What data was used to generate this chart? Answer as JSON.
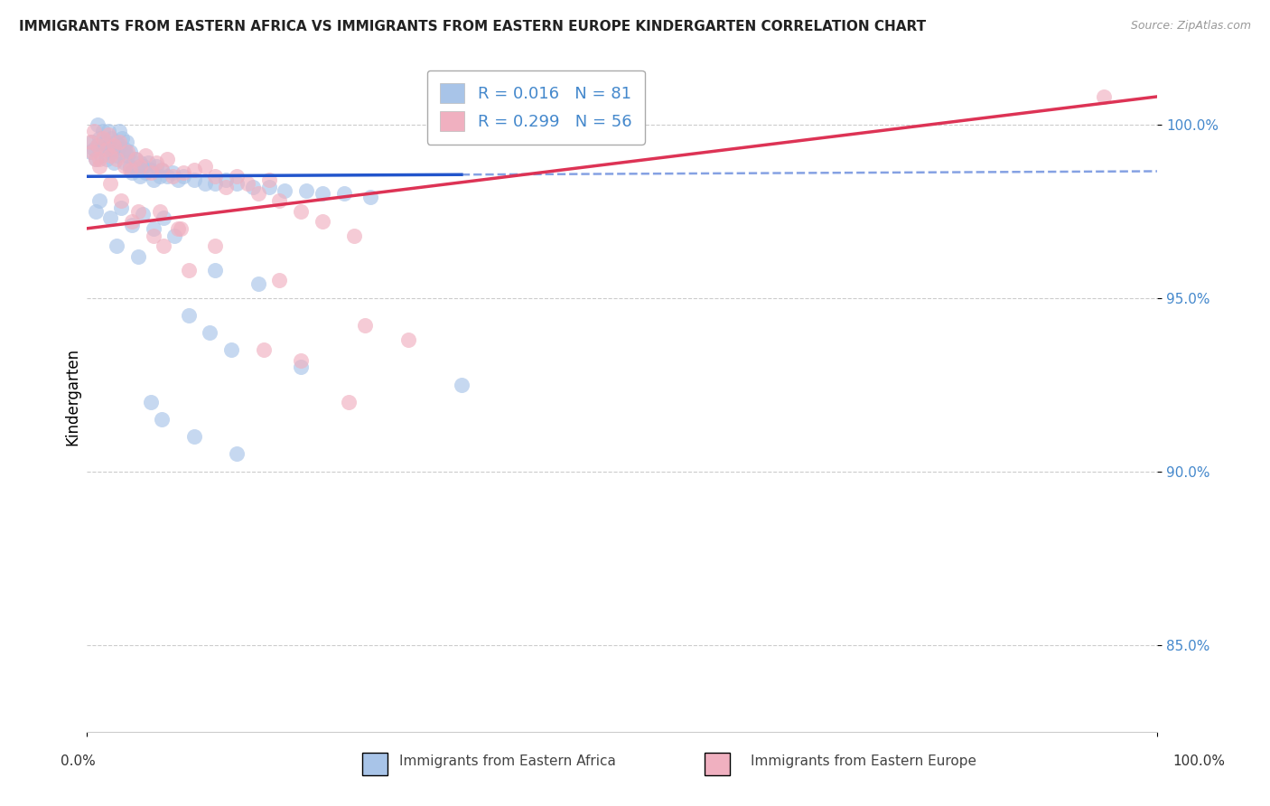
{
  "title": "IMMIGRANTS FROM EASTERN AFRICA VS IMMIGRANTS FROM EASTERN EUROPE KINDERGARTEN CORRELATION CHART",
  "source": "Source: ZipAtlas.com",
  "ylabel": "Kindergarten",
  "y_tick_values": [
    85.0,
    90.0,
    95.0,
    100.0
  ],
  "xlim": [
    0.0,
    100.0
  ],
  "ylim": [
    82.5,
    101.8
  ],
  "blue_R": 0.016,
  "blue_N": 81,
  "pink_R": 0.299,
  "pink_N": 56,
  "blue_color": "#a8c4e8",
  "pink_color": "#f0b0c0",
  "blue_line_color": "#2255cc",
  "pink_line_color": "#dd3355",
  "background_color": "#ffffff",
  "grid_color": "#cccccc",
  "blue_line_start_y": 98.5,
  "blue_line_end_y": 98.65,
  "blue_line_solid_end_x": 35.0,
  "pink_line_start_y": 97.0,
  "pink_line_end_y": 100.8,
  "blue_x": [
    0.3,
    0.5,
    0.7,
    0.8,
    1.0,
    1.0,
    1.2,
    1.3,
    1.5,
    1.5,
    1.7,
    1.8,
    2.0,
    2.0,
    2.2,
    2.3,
    2.5,
    2.5,
    2.7,
    2.8,
    3.0,
    3.0,
    3.2,
    3.3,
    3.5,
    3.5,
    3.7,
    3.8,
    4.0,
    4.0,
    4.2,
    4.5,
    4.7,
    5.0,
    5.0,
    5.3,
    5.5,
    5.7,
    6.0,
    6.2,
    6.5,
    6.8,
    7.0,
    7.5,
    8.0,
    8.5,
    9.0,
    10.0,
    11.0,
    12.0,
    13.0,
    14.0,
    15.5,
    17.0,
    18.5,
    20.5,
    22.0,
    24.0,
    26.5,
    0.8,
    1.2,
    2.2,
    3.2,
    4.2,
    5.2,
    6.2,
    7.2,
    8.2,
    2.8,
    4.8,
    12.0,
    16.0,
    9.5,
    11.5,
    13.5,
    20.0,
    35.0,
    6.0,
    7.0,
    10.0,
    14.0
  ],
  "blue_y": [
    99.2,
    99.5,
    99.3,
    99.0,
    99.4,
    100.0,
    99.6,
    99.1,
    99.3,
    99.8,
    99.5,
    99.0,
    99.4,
    99.8,
    99.2,
    99.6,
    99.3,
    98.9,
    99.5,
    99.1,
    99.4,
    99.8,
    99.2,
    99.6,
    99.3,
    98.9,
    99.5,
    99.1,
    99.2,
    98.8,
    98.6,
    99.0,
    98.7,
    98.9,
    98.5,
    98.8,
    98.6,
    98.9,
    98.7,
    98.4,
    98.8,
    98.5,
    98.7,
    98.5,
    98.6,
    98.4,
    98.5,
    98.4,
    98.3,
    98.3,
    98.4,
    98.3,
    98.2,
    98.2,
    98.1,
    98.1,
    98.0,
    98.0,
    97.9,
    97.5,
    97.8,
    97.3,
    97.6,
    97.1,
    97.4,
    97.0,
    97.3,
    96.8,
    96.5,
    96.2,
    95.8,
    95.4,
    94.5,
    94.0,
    93.5,
    93.0,
    92.5,
    92.0,
    91.5,
    91.0,
    90.5
  ],
  "pink_x": [
    0.3,
    0.5,
    0.7,
    1.0,
    1.2,
    1.5,
    1.8,
    2.0,
    2.2,
    2.5,
    2.8,
    3.0,
    3.5,
    3.8,
    4.0,
    4.5,
    5.0,
    5.5,
    6.0,
    6.5,
    7.0,
    7.5,
    8.0,
    9.0,
    10.0,
    11.0,
    12.0,
    13.0,
    14.0,
    15.0,
    16.0,
    17.0,
    18.0,
    20.0,
    22.0,
    25.0,
    1.2,
    2.2,
    3.2,
    4.2,
    6.2,
    7.2,
    9.5,
    16.5,
    24.5,
    6.8,
    8.8,
    12.0,
    18.0,
    26.0,
    30.0,
    20.0,
    8.5,
    4.8,
    95.0,
    0.8
  ],
  "pink_y": [
    99.5,
    99.2,
    99.8,
    99.4,
    99.0,
    99.6,
    99.3,
    99.7,
    99.1,
    99.4,
    99.0,
    99.5,
    98.8,
    99.2,
    98.7,
    99.0,
    98.8,
    99.1,
    98.6,
    98.9,
    98.7,
    99.0,
    98.5,
    98.6,
    98.7,
    98.8,
    98.5,
    98.2,
    98.5,
    98.3,
    98.0,
    98.4,
    97.8,
    97.5,
    97.2,
    96.8,
    98.8,
    98.3,
    97.8,
    97.2,
    96.8,
    96.5,
    95.8,
    93.5,
    92.0,
    97.5,
    97.0,
    96.5,
    95.5,
    94.2,
    93.8,
    93.2,
    97.0,
    97.5,
    100.8,
    99.0
  ]
}
